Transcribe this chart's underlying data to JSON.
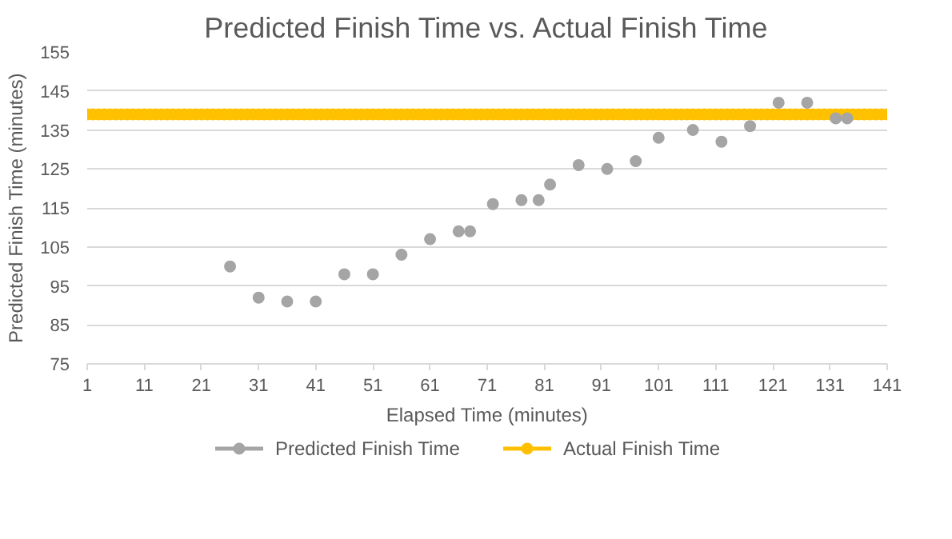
{
  "chart_data": {
    "type": "scatter",
    "title": "Predicted Finish Time vs. Actual Finish Time",
    "xlabel": "Elapsed Time (minutes)",
    "ylabel": "Predicted Finish Time (minutes)",
    "xlim": [
      1,
      141
    ],
    "xticks": [
      1,
      11,
      21,
      31,
      41,
      51,
      61,
      71,
      81,
      91,
      101,
      111,
      121,
      131,
      141
    ],
    "ylim": [
      75,
      155
    ],
    "yticks": [
      75,
      85,
      95,
      105,
      115,
      125,
      135,
      145,
      155
    ],
    "grid": "y",
    "legend": "bottom",
    "marker": "circle",
    "series": [
      {
        "name": "Predicted Finish Time",
        "color": "#a5a5a5",
        "x": [
          26,
          31,
          36,
          41,
          46,
          51,
          56,
          61,
          66,
          68,
          72,
          77,
          80,
          82,
          87,
          92,
          97,
          101,
          107,
          112,
          117,
          122,
          127,
          132,
          134
        ],
        "values": [
          100,
          92,
          91,
          91,
          98,
          98,
          103,
          107,
          109,
          109,
          116,
          117,
          117,
          121,
          126,
          125,
          127,
          133,
          135,
          132,
          136,
          142,
          142,
          138,
          138
        ]
      },
      {
        "name": "Actual Finish Time",
        "color": "#ffc000",
        "x": [
          1,
          2,
          3,
          4,
          5,
          6,
          7,
          8,
          9,
          10,
          11,
          12,
          13,
          14,
          15,
          16,
          17,
          18,
          19,
          20,
          21,
          22,
          23,
          24,
          25,
          26,
          27,
          28,
          29,
          30,
          31,
          32,
          33,
          34,
          35,
          36,
          37,
          38,
          39,
          40,
          41,
          42,
          43,
          44,
          45,
          46,
          47,
          48,
          49,
          50,
          51,
          52,
          53,
          54,
          55,
          56,
          57,
          58,
          59,
          60,
          61,
          62,
          63,
          64,
          65,
          66,
          67,
          68,
          69,
          70,
          71,
          72,
          73,
          74,
          75,
          76,
          77,
          78,
          79,
          80,
          81,
          82,
          83,
          84,
          85,
          86,
          87,
          88,
          89,
          90,
          91,
          92,
          93,
          94,
          95,
          96,
          97,
          98,
          99,
          100,
          101,
          102,
          103,
          104,
          105,
          106,
          107,
          108,
          109,
          110,
          111,
          112,
          113,
          114,
          115,
          116,
          117,
          118,
          119,
          120,
          121,
          122,
          123,
          124,
          125,
          126,
          127,
          128,
          129,
          130,
          131,
          132,
          133,
          134,
          135,
          136,
          137,
          138,
          139,
          140,
          141
        ],
        "values": [
          139,
          139,
          139,
          139,
          139,
          139,
          139,
          139,
          139,
          139,
          139,
          139,
          139,
          139,
          139,
          139,
          139,
          139,
          139,
          139,
          139,
          139,
          139,
          139,
          139,
          139,
          139,
          139,
          139,
          139,
          139,
          139,
          139,
          139,
          139,
          139,
          139,
          139,
          139,
          139,
          139,
          139,
          139,
          139,
          139,
          139,
          139,
          139,
          139,
          139,
          139,
          139,
          139,
          139,
          139,
          139,
          139,
          139,
          139,
          139,
          139,
          139,
          139,
          139,
          139,
          139,
          139,
          139,
          139,
          139,
          139,
          139,
          139,
          139,
          139,
          139,
          139,
          139,
          139,
          139,
          139,
          139,
          139,
          139,
          139,
          139,
          139,
          139,
          139,
          139,
          139,
          139,
          139,
          139,
          139,
          139,
          139,
          139,
          139,
          139,
          139,
          139,
          139,
          139,
          139,
          139,
          139,
          139,
          139,
          139,
          139,
          139,
          139,
          139,
          139,
          139,
          139,
          139,
          139,
          139,
          139,
          139,
          139,
          139,
          139,
          139,
          139,
          139,
          139,
          139,
          139,
          139,
          139,
          139,
          139,
          139,
          139,
          139,
          139,
          139,
          139
        ]
      }
    ]
  }
}
